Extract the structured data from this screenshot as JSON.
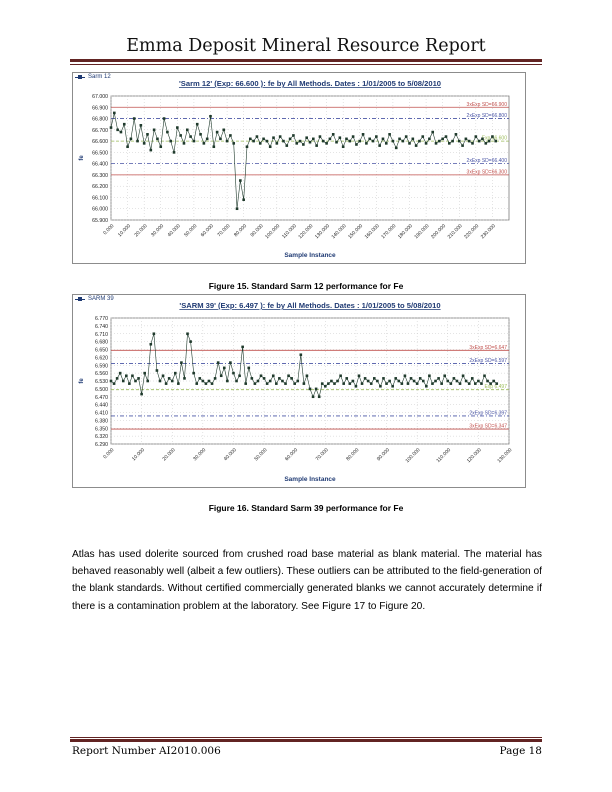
{
  "page": {
    "header_title": "Emma Deposit Mineral Resource Report",
    "footer_left": "Report Number AI2010.006",
    "footer_right": "Page 18"
  },
  "captions": {
    "fig15": "Figure 15. Standard Sarm 12 performance for Fe",
    "fig16": "Figure 16. Standard Sarm 39 performance for Fe"
  },
  "body_text": "Atlas has used dolerite sourced from crushed road base material as blank material.  The material has behaved reasonably well (albeit a few outliers).  These outliers can be attributed to the field-generation of the blank standards.  Without certified commercially generated blanks we cannot accurately determine if there is a contamination problem at the laboratory.  See Figure 17 to Figure 20.",
  "colors": {
    "title": "#1f3a73",
    "series": "#1f3a2c",
    "sd3": "#c0504d",
    "sd2": "#4a55a5",
    "expected": "#9bbb59"
  },
  "chart_data": [
    {
      "type": "line",
      "legend_label": "Sarm 12",
      "title": "'Sarm 12' (Exp: 66.600 ): fe by All Methods. Dates : 1/01/2005 to 5/08/2010",
      "xlabel": "Sample Instance",
      "ylabel": "fe",
      "ylim": [
        65.9,
        67.0
      ],
      "xlim": [
        0,
        240
      ],
      "grid": true,
      "y_ticks": [
        "67.000",
        "66.900",
        "66.800",
        "66.700",
        "66.600",
        "66.500",
        "66.400",
        "66.300",
        "66.200",
        "66.100",
        "66.000",
        "65.900"
      ],
      "x_ticks": [
        "0.000",
        "10.000",
        "20.000",
        "30.000",
        "40.000",
        "50.000",
        "60.000",
        "70.000",
        "80.000",
        "90.000",
        "100.000",
        "110.000",
        "120.000",
        "130.000",
        "140.000",
        "150.000",
        "160.000",
        "170.000",
        "180.000",
        "190.000",
        "200.000",
        "210.000",
        "220.000",
        "230.000"
      ],
      "reference_lines": [
        {
          "label": "3xExp SD=66.900",
          "value": 66.9,
          "kind": "sd3"
        },
        {
          "label": "2xExp SD=66.800",
          "value": 66.8,
          "kind": "sd2"
        },
        {
          "label": "Exp 66.600",
          "value": 66.6,
          "kind": "exp"
        },
        {
          "label": "2xExp SD=66.400",
          "value": 66.4,
          "kind": "sd2"
        },
        {
          "label": "3xExp SD=66.300",
          "value": 66.3,
          "kind": "sd3"
        }
      ],
      "series": [
        {
          "x": [
            0,
            2,
            4,
            6,
            8,
            10,
            12,
            14,
            16,
            18,
            20,
            22,
            24,
            26,
            28,
            30,
            32,
            34,
            36,
            38,
            40,
            42,
            44,
            46,
            48,
            50,
            52,
            54,
            56,
            58,
            60,
            62,
            64,
            66,
            68,
            70,
            72,
            74,
            76,
            78,
            80,
            82,
            84,
            86,
            88,
            90,
            92,
            94,
            96,
            98,
            100,
            102,
            104,
            106,
            108,
            110,
            112,
            114,
            116,
            118,
            120,
            122,
            124,
            126,
            128,
            130,
            132,
            134,
            136,
            138,
            140,
            142,
            144,
            146,
            148,
            150,
            152,
            154,
            156,
            158,
            160,
            162,
            164,
            166,
            168,
            170,
            172,
            174,
            176,
            178,
            180,
            182,
            184,
            186,
            188,
            190,
            192,
            194,
            196,
            198,
            200,
            202,
            204,
            206,
            208,
            210,
            212,
            214,
            216,
            218,
            220,
            222,
            224,
            226,
            228,
            230,
            232
          ],
          "values": [
            66.72,
            66.85,
            66.7,
            66.68,
            66.75,
            66.55,
            66.62,
            66.8,
            66.6,
            66.74,
            66.58,
            66.66,
            66.52,
            66.7,
            66.62,
            66.55,
            66.8,
            66.68,
            66.6,
            66.5,
            66.72,
            66.65,
            66.58,
            66.7,
            66.64,
            66.6,
            66.75,
            66.66,
            66.58,
            66.62,
            66.82,
            66.55,
            66.68,
            66.62,
            66.7,
            66.6,
            66.65,
            66.58,
            66.0,
            66.25,
            66.08,
            66.55,
            66.62,
            66.6,
            66.64,
            66.58,
            66.62,
            66.6,
            66.55,
            66.63,
            66.58,
            66.64,
            66.6,
            66.56,
            66.62,
            66.65,
            66.58,
            66.6,
            66.57,
            66.63,
            66.59,
            66.62,
            66.56,
            66.64,
            66.6,
            66.58,
            66.62,
            66.66,
            66.59,
            66.63,
            66.55,
            66.62,
            66.6,
            66.64,
            66.57,
            66.6,
            66.66,
            66.58,
            66.62,
            66.6,
            66.64,
            66.56,
            66.62,
            66.58,
            66.66,
            66.6,
            66.54,
            66.62,
            66.6,
            66.64,
            66.58,
            66.62,
            66.56,
            66.6,
            66.64,
            66.58,
            66.62,
            66.68,
            66.58,
            66.6,
            66.62,
            66.64,
            66.58,
            66.6,
            66.66,
            66.6,
            66.56,
            66.62,
            66.6,
            66.58,
            66.64,
            66.6,
            66.62,
            66.58,
            66.6,
            66.64,
            66.6
          ]
        }
      ]
    },
    {
      "type": "line",
      "legend_label": "SARM 39",
      "title": "'SARM 39' (Exp: 6.497 ): fe by All Methods. Dates : 1/01/2005 to 5/08/2010",
      "xlabel": "Sample Instance",
      "ylabel": "fe",
      "ylim": [
        6.29,
        6.77
      ],
      "xlim": [
        0,
        130
      ],
      "grid": true,
      "y_ticks": [
        "6.770",
        "6.740",
        "6.710",
        "6.680",
        "6.650",
        "6.620",
        "6.590",
        "6.560",
        "6.530",
        "6.500",
        "6.470",
        "6.440",
        "6.410",
        "6.380",
        "6.350",
        "6.320",
        "6.290"
      ],
      "x_ticks": [
        "0.000",
        "10.000",
        "20.000",
        "30.000",
        "40.000",
        "50.000",
        "60.000",
        "70.000",
        "80.000",
        "90.000",
        "100.000",
        "110.000",
        "120.000",
        "130.000"
      ],
      "reference_lines": [
        {
          "label": "3xExp SD=6.647",
          "value": 6.647,
          "kind": "sd3"
        },
        {
          "label": "2xExp SD=6.597",
          "value": 6.597,
          "kind": "sd2"
        },
        {
          "label": "Exp 6.497",
          "value": 6.497,
          "kind": "exp"
        },
        {
          "label": "2xExp SD=6.397",
          "value": 6.397,
          "kind": "sd2"
        },
        {
          "label": "3xExp SD=6.347",
          "value": 6.347,
          "kind": "sd3"
        }
      ],
      "series": [
        {
          "x": [
            0,
            1,
            2,
            3,
            4,
            5,
            6,
            7,
            8,
            9,
            10,
            11,
            12,
            13,
            14,
            15,
            16,
            17,
            18,
            19,
            20,
            21,
            22,
            23,
            24,
            25,
            26,
            27,
            28,
            29,
            30,
            31,
            32,
            33,
            34,
            35,
            36,
            37,
            38,
            39,
            40,
            41,
            42,
            43,
            44,
            45,
            46,
            47,
            48,
            49,
            50,
            51,
            52,
            53,
            54,
            55,
            56,
            57,
            58,
            59,
            60,
            61,
            62,
            63,
            64,
            65,
            66,
            67,
            68,
            69,
            70,
            71,
            72,
            73,
            74,
            75,
            76,
            77,
            78,
            79,
            80,
            81,
            82,
            83,
            84,
            85,
            86,
            87,
            88,
            89,
            90,
            91,
            92,
            93,
            94,
            95,
            96,
            97,
            98,
            99,
            100,
            101,
            102,
            103,
            104,
            105,
            106,
            107,
            108,
            109,
            110,
            111,
            112,
            113,
            114,
            115,
            116,
            117,
            118,
            119,
            120,
            121,
            122,
            123,
            124,
            125,
            126
          ],
          "values": [
            6.53,
            6.52,
            6.54,
            6.56,
            6.53,
            6.55,
            6.52,
            6.55,
            6.53,
            6.54,
            6.48,
            6.56,
            6.53,
            6.67,
            6.71,
            6.57,
            6.53,
            6.55,
            6.52,
            6.54,
            6.53,
            6.56,
            6.52,
            6.6,
            6.54,
            6.71,
            6.68,
            6.56,
            6.52,
            6.54,
            6.53,
            6.52,
            6.53,
            6.52,
            6.54,
            6.6,
            6.55,
            6.58,
            6.53,
            6.6,
            6.56,
            6.53,
            6.55,
            6.66,
            6.52,
            6.58,
            6.54,
            6.52,
            6.53,
            6.55,
            6.54,
            6.52,
            6.53,
            6.55,
            6.52,
            6.54,
            6.53,
            6.52,
            6.55,
            6.54,
            6.52,
            6.53,
            6.63,
            6.52,
            6.55,
            6.5,
            6.47,
            6.5,
            6.47,
            6.52,
            6.51,
            6.52,
            6.53,
            6.52,
            6.53,
            6.55,
            6.52,
            6.54,
            6.52,
            6.53,
            6.51,
            6.55,
            6.52,
            6.54,
            6.53,
            6.52,
            6.54,
            6.53,
            6.51,
            6.54,
            6.52,
            6.53,
            6.51,
            6.54,
            6.53,
            6.52,
            6.55,
            6.52,
            6.54,
            6.53,
            6.52,
            6.54,
            6.53,
            6.51,
            6.55,
            6.52,
            6.53,
            6.54,
            6.52,
            6.55,
            6.53,
            6.52,
            6.54,
            6.53,
            6.52,
            6.55,
            6.53,
            6.52,
            6.54,
            6.52,
            6.53,
            6.52,
            6.55,
            6.53,
            6.52,
            6.53,
            6.52
          ]
        }
      ]
    }
  ]
}
